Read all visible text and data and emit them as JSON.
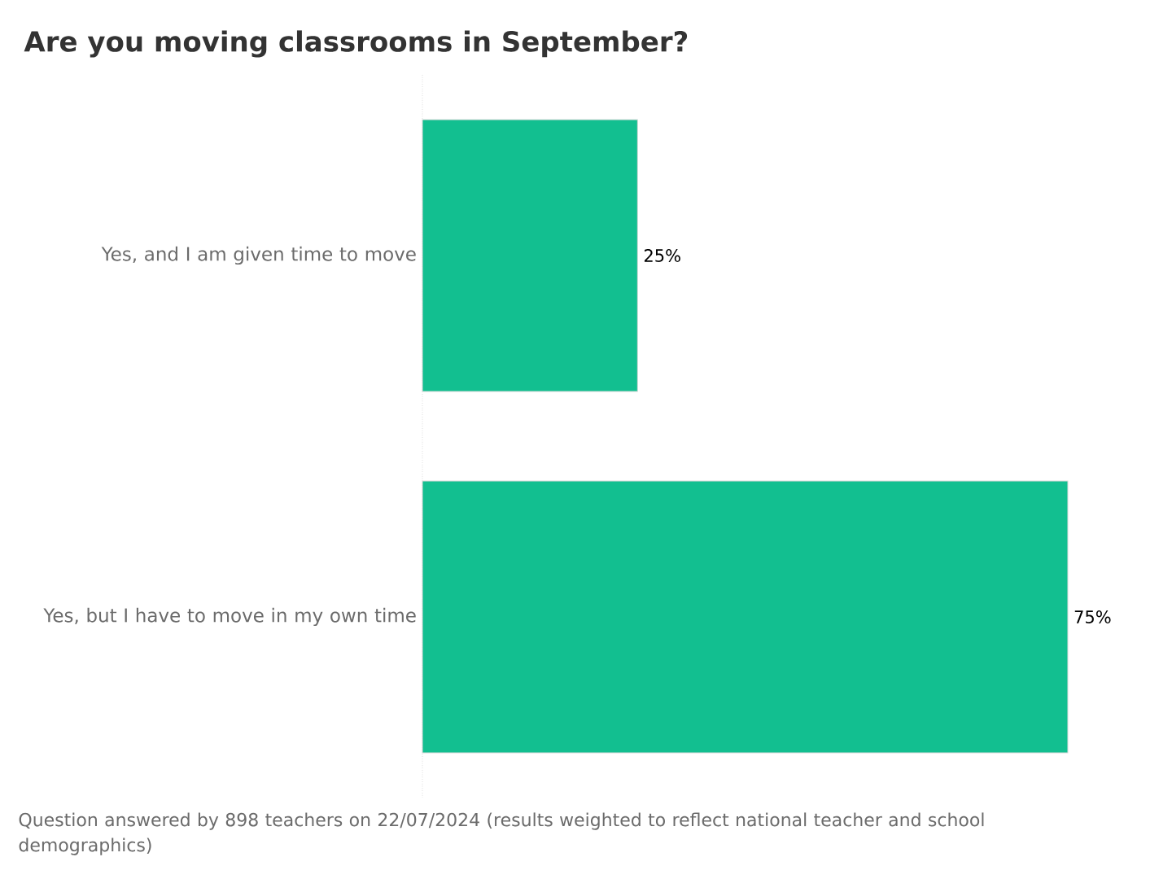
{
  "chart_data": {
    "type": "bar",
    "orientation": "horizontal",
    "title": "Are you moving classrooms in September?",
    "categories": [
      "Yes, and I am given time to move",
      "Yes, but I have to move in my own time"
    ],
    "values": [
      25,
      75
    ],
    "color": "#12bf90",
    "value_labels": [
      "25%",
      "75%"
    ],
    "annotations": [
      "Question answered by 898 teachers on 22/07/2024 (results weighted to reflect national teacher and school demographics)"
    ]
  }
}
